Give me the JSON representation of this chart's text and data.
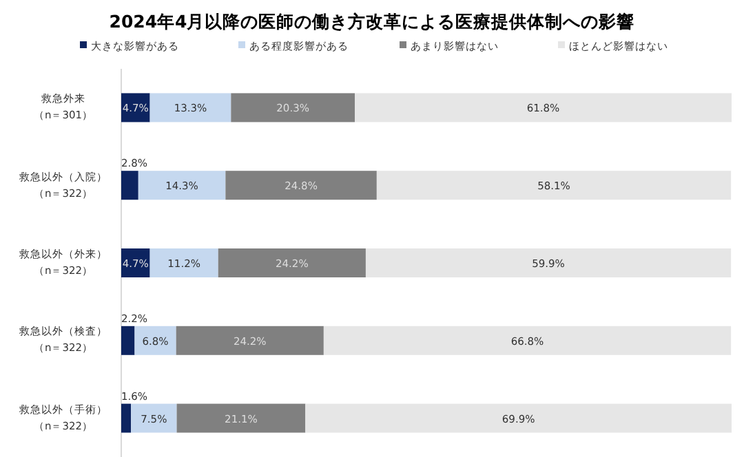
{
  "chart_data": {
    "type": "bar",
    "orientation": "horizontal",
    "stacked": true,
    "legend": "top",
    "title": "2024年4月以降の医師の働き方改革による医療提供体制への影響",
    "categories": [
      "救急外来（n＝301）",
      "救急以外（入院）（n＝322）",
      "救急以外（外来）（n＝322）",
      "救急以外（検査）（n＝322）",
      "救急以外（手術）（n＝322）"
    ],
    "series": [
      {
        "name": "大きな影響がある",
        "color": "#0d2460",
        "values": [
          4.7,
          2.8,
          4.7,
          2.2,
          1.6
        ],
        "value_labels": [
          "4.7%",
          "2.8%",
          "4.7%",
          "2.2%",
          "1.6%"
        ]
      },
      {
        "name": "ある程度影響がある",
        "color": "#c5d8ef",
        "values": [
          13.3,
          14.3,
          11.2,
          6.8,
          7.5
        ],
        "value_labels": [
          "13.3%",
          "14.3%",
          "11.2%",
          "6.8%",
          "7.5%"
        ]
      },
      {
        "name": "あまり影響はない",
        "color": "#808080",
        "values": [
          20.3,
          24.8,
          24.2,
          24.2,
          21.1
        ],
        "value_labels": [
          "20.3%",
          "24.8%",
          "24.2%",
          "24.2%",
          "21.1%"
        ]
      },
      {
        "name": "ほとんど影響はない",
        "color": "#e6e6e6",
        "values": [
          61.8,
          58.1,
          59.9,
          66.8,
          69.9
        ],
        "value_labels": [
          "61.8%",
          "58.1%",
          "59.9%",
          "66.8%",
          "69.9%"
        ]
      }
    ]
  }
}
